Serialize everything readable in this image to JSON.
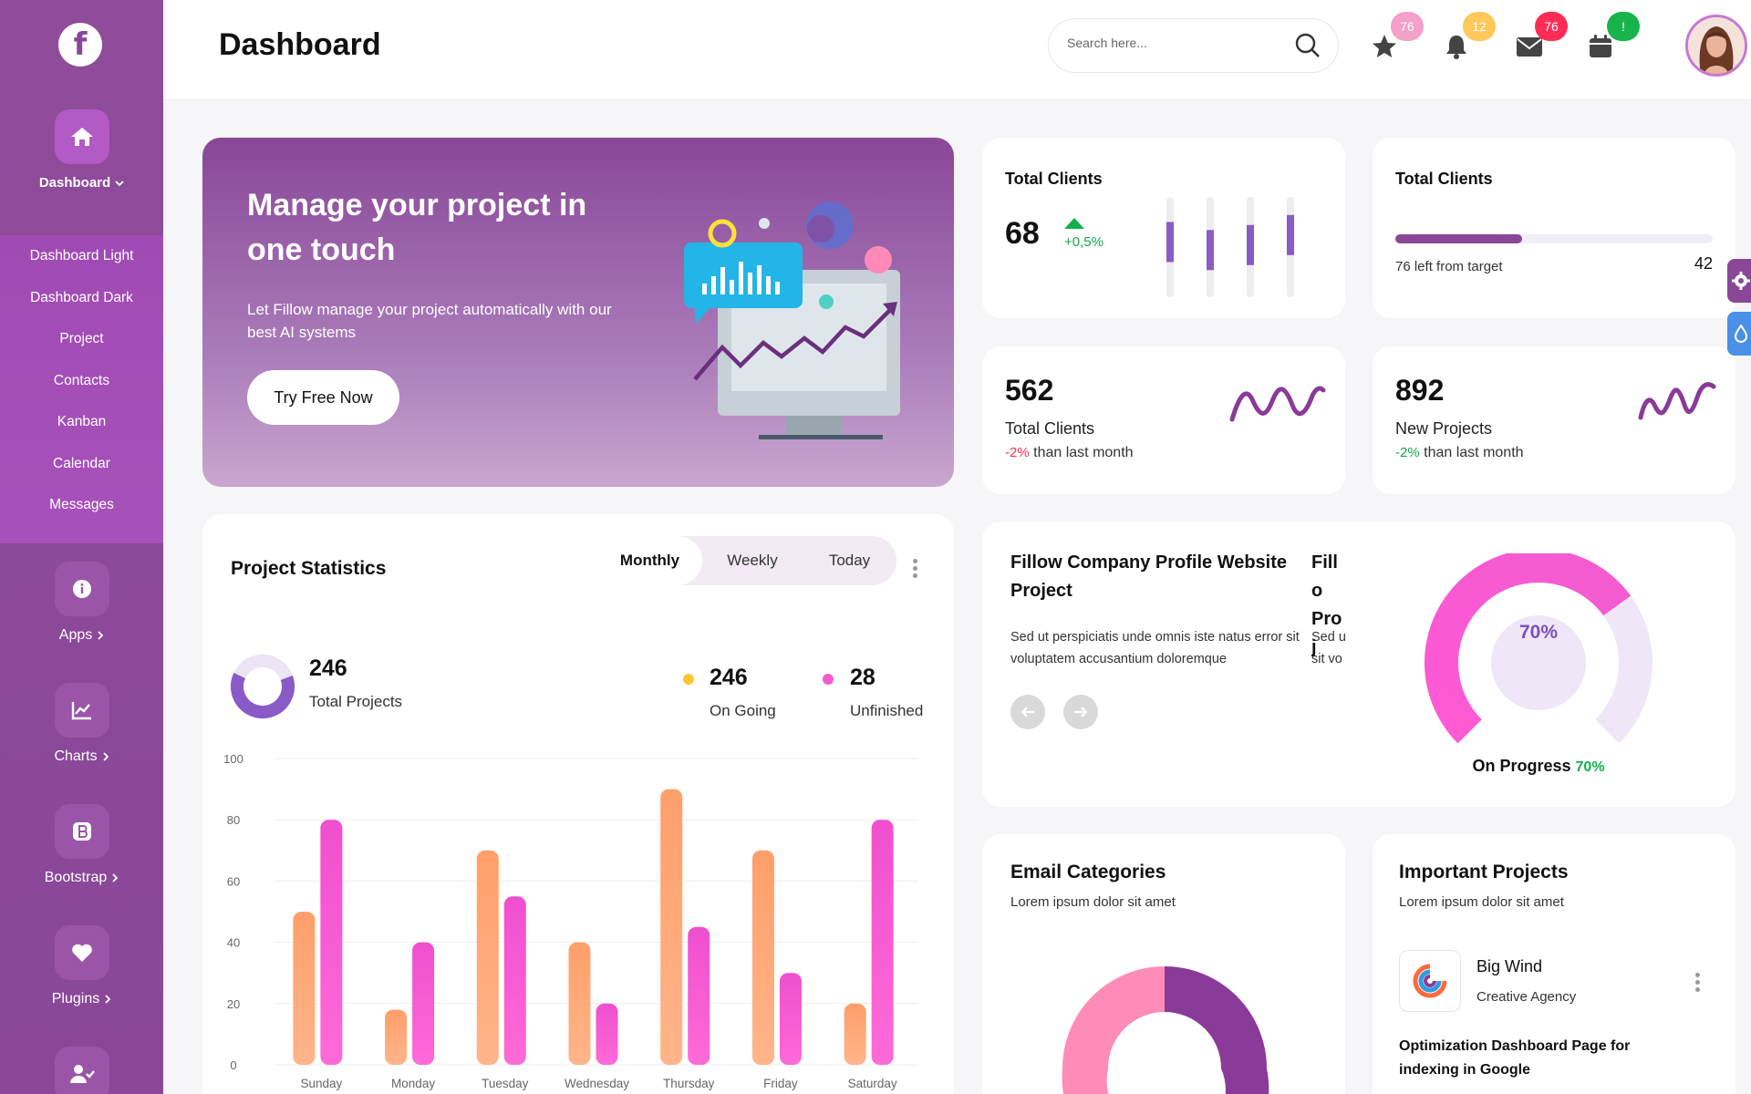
{
  "brand": {
    "logo_letter": "f"
  },
  "sidebar": {
    "main": {
      "label": "Dashboard"
    },
    "submenu": [
      "Dashboard Light",
      "Dashboard Dark",
      "Project",
      "Contacts",
      "Kanban",
      "Calendar",
      "Messages"
    ],
    "items": [
      {
        "label": "Apps",
        "icon": "info-icon"
      },
      {
        "label": "Charts",
        "icon": "chart-icon"
      },
      {
        "label": "Bootstrap",
        "icon": "bootstrap-icon"
      },
      {
        "label": "Plugins",
        "icon": "heart-icon"
      },
      {
        "label": "",
        "icon": "user-check-icon"
      }
    ]
  },
  "header": {
    "title": "Dashboard",
    "search_placeholder": "Search here...",
    "badges": {
      "favorites": "76",
      "notifications": "12",
      "messages": "76",
      "calendar": "!"
    },
    "badge_colors": {
      "favorites": "#f4a0c8",
      "notifications": "#ffc85a",
      "messages": "#ff2d55",
      "calendar": "#18b34a"
    }
  },
  "hero": {
    "title": "Manage your project in one touch",
    "description": "Let Fillow manage your project automatically with our best AI systems",
    "cta": "Try Free Now"
  },
  "total_clients_bars": {
    "title": "Total Clients",
    "value": "68",
    "change": "+0,5%",
    "bar_levels": [
      0.55,
      0.47,
      0.52,
      0.62
    ]
  },
  "total_clients_progress": {
    "title": "Total Clients",
    "note": "76 left from target",
    "value": "42",
    "progress": 0.4
  },
  "total_clients_card": {
    "value": "562",
    "label": "Total Clients",
    "change": "-2%",
    "change_text": "than last month"
  },
  "new_projects_card": {
    "value": "892",
    "label": "New Projects",
    "change": "-2%",
    "change_text": "than last month"
  },
  "project_statistics": {
    "title": "Project Statistics",
    "tabs": [
      "Monthly",
      "Weekly",
      "Today"
    ],
    "active_tab": "Monthly",
    "total": {
      "value": "246",
      "label": "Total Projects"
    },
    "on_going": {
      "value": "246",
      "label": "On Going"
    },
    "unfinished": {
      "value": "28",
      "label": "Unfinished"
    }
  },
  "chart_data": {
    "type": "bar",
    "categories": [
      "Sunday",
      "Monday",
      "Tuesday",
      "Wednesday",
      "Thursday",
      "Friday",
      "Saturday"
    ],
    "series": [
      {
        "values": [
          50,
          18,
          70,
          40,
          90,
          70,
          20
        ],
        "color": "#ff9b62"
      },
      {
        "values": [
          80,
          40,
          55,
          20,
          45,
          30,
          80
        ],
        "color": "#f25bd0"
      }
    ],
    "yticks": [
      "100",
      "80",
      "60",
      "40",
      "20",
      "0"
    ],
    "ylim": [
      0,
      100
    ]
  },
  "company_profile": {
    "title": "Fillow Company Profile Website Project",
    "title_peek": "Fillo Proj",
    "description": "Sed ut perspiciatis unde omnis iste natus error sit voluptatem accusantium doloremque",
    "desc_peek": "Sed u sit vo",
    "gauge_value": "70%",
    "gauge_label": "On Progress",
    "gauge_pct": "70%",
    "gauge_fraction": 0.7
  },
  "email_categories": {
    "title": "Email Categories",
    "subtitle": "Lorem ipsum dolor sit amet"
  },
  "important_projects": {
    "title": "Important Projects",
    "subtitle": "Lorem ipsum dolor sit amet",
    "project": {
      "name": "Big Wind",
      "company": "Creative Agency",
      "description": "Optimization Dashboard Page for indexing in Google"
    }
  }
}
